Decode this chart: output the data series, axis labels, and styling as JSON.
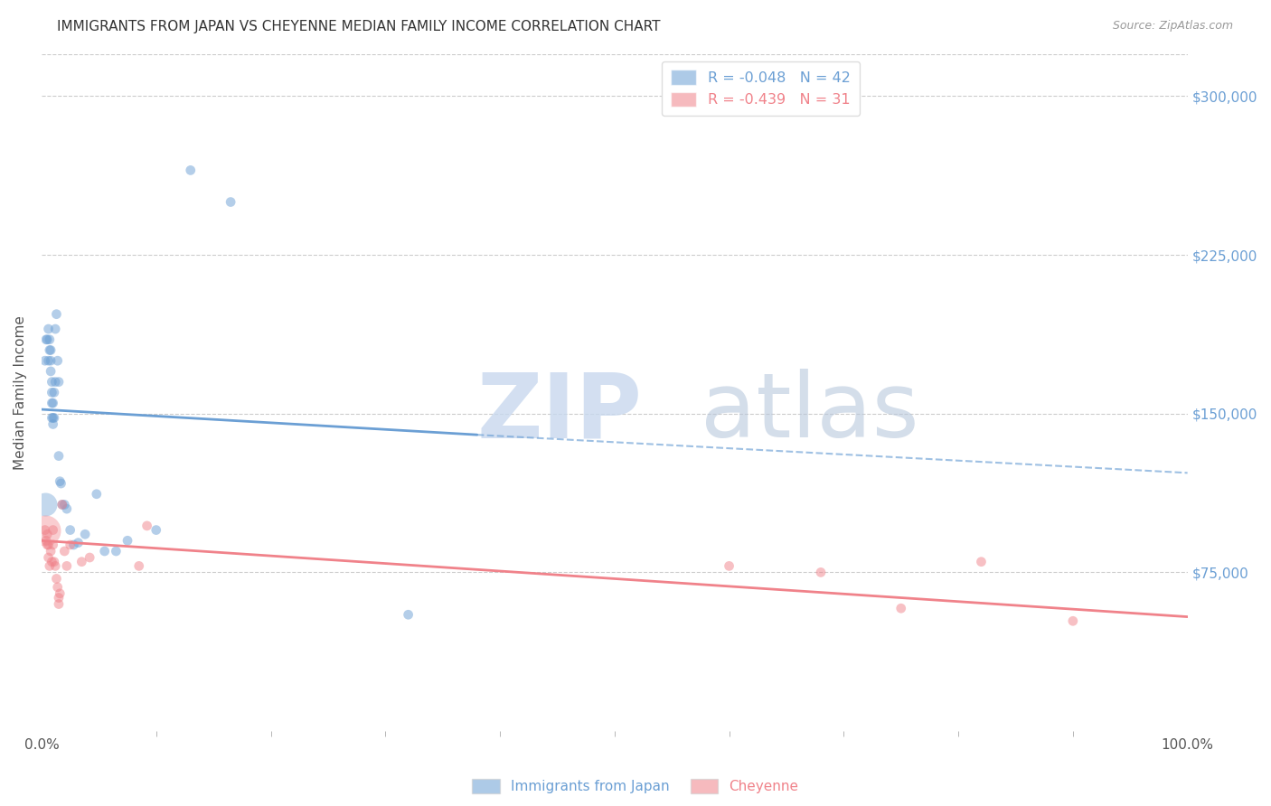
{
  "title": "IMMIGRANTS FROM JAPAN VS CHEYENNE MEDIAN FAMILY INCOME CORRELATION CHART",
  "source": "Source: ZipAtlas.com",
  "ylabel": "Median Family Income",
  "xlim": [
    0,
    1.0
  ],
  "ylim": [
    0,
    320000
  ],
  "ytick_labels": [
    "$75,000",
    "$150,000",
    "$225,000",
    "$300,000"
  ],
  "ytick_values": [
    75000,
    150000,
    225000,
    300000
  ],
  "legend_upper": [
    {
      "label": "R = -0.048   N = 42",
      "color": "#6b9fd4"
    },
    {
      "label": "R = -0.439   N = 31",
      "color": "#f0828a"
    }
  ],
  "blue_scatter": {
    "x": [
      0.003,
      0.004,
      0.005,
      0.006,
      0.006,
      0.007,
      0.007,
      0.008,
      0.008,
      0.008,
      0.009,
      0.009,
      0.009,
      0.009,
      0.01,
      0.01,
      0.01,
      0.011,
      0.011,
      0.012,
      0.012,
      0.013,
      0.014,
      0.015,
      0.015,
      0.016,
      0.017,
      0.018,
      0.02,
      0.022,
      0.025,
      0.028,
      0.032,
      0.038,
      0.048,
      0.055,
      0.065,
      0.075,
      0.1,
      0.13,
      0.165,
      0.32
    ],
    "y": [
      175000,
      185000,
      185000,
      190000,
      175000,
      185000,
      180000,
      180000,
      175000,
      170000,
      165000,
      160000,
      155000,
      148000,
      155000,
      148000,
      145000,
      160000,
      148000,
      165000,
      190000,
      197000,
      175000,
      165000,
      130000,
      118000,
      117000,
      107000,
      107000,
      105000,
      95000,
      88000,
      89000,
      93000,
      112000,
      85000,
      85000,
      90000,
      95000,
      265000,
      250000,
      55000
    ],
    "sizes": [
      60,
      60,
      60,
      60,
      60,
      60,
      60,
      60,
      60,
      60,
      60,
      60,
      60,
      60,
      60,
      60,
      60,
      60,
      60,
      60,
      60,
      60,
      60,
      60,
      60,
      60,
      60,
      60,
      60,
      60,
      60,
      60,
      60,
      60,
      60,
      60,
      60,
      60,
      60,
      60,
      60,
      60
    ]
  },
  "blue_large": {
    "x": [
      0.003
    ],
    "y": [
      107000
    ],
    "sizes": [
      350
    ]
  },
  "pink_scatter": {
    "x": [
      0.003,
      0.004,
      0.005,
      0.005,
      0.006,
      0.006,
      0.007,
      0.008,
      0.009,
      0.01,
      0.01,
      0.011,
      0.012,
      0.013,
      0.014,
      0.015,
      0.015,
      0.016,
      0.018,
      0.02,
      0.022,
      0.025,
      0.035,
      0.042,
      0.085,
      0.092,
      0.6,
      0.68,
      0.75,
      0.82,
      0.9
    ],
    "y": [
      95000,
      90000,
      93000,
      88000,
      88000,
      82000,
      78000,
      85000,
      80000,
      95000,
      88000,
      80000,
      78000,
      72000,
      68000,
      63000,
      60000,
      65000,
      107000,
      85000,
      78000,
      88000,
      80000,
      82000,
      78000,
      97000,
      78000,
      75000,
      58000,
      80000,
      52000
    ],
    "sizes": [
      60,
      60,
      60,
      60,
      60,
      60,
      60,
      60,
      60,
      60,
      60,
      60,
      60,
      60,
      60,
      60,
      60,
      60,
      60,
      60,
      60,
      60,
      60,
      60,
      60,
      60,
      60,
      60,
      60,
      60,
      60
    ]
  },
  "pink_large": {
    "x": [
      0.003
    ],
    "y": [
      95000
    ],
    "sizes": [
      600
    ]
  },
  "blue_line_solid": {
    "x0": 0.0,
    "y0": 152000,
    "x1": 0.38,
    "y1": 140000
  },
  "blue_line_dashed": {
    "x0": 0.38,
    "y0": 140000,
    "x1": 1.0,
    "y1": 122000
  },
  "pink_line": {
    "x0": 0.0,
    "y0": 90000,
    "x1": 1.0,
    "y1": 54000
  },
  "blue_color": "#6b9fd4",
  "pink_color": "#f0828a",
  "grid_color": "#cccccc",
  "background_color": "#ffffff"
}
